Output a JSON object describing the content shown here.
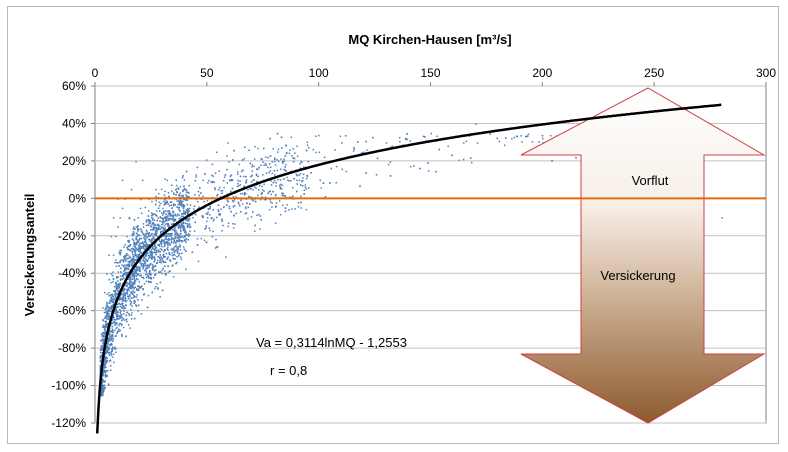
{
  "chart_data": {
    "type": "scatter",
    "title": "MQ Kirchen-Hausen [m³/s]",
    "xlabel": "",
    "ylabel": "Versickerungsanteil",
    "x_axis_position": "top",
    "xlim": [
      0,
      300
    ],
    "ylim": [
      -1.2,
      0.6
    ],
    "x_ticks": [
      0,
      50,
      100,
      150,
      200,
      250,
      300
    ],
    "y_ticks": [
      {
        "value": 0.6,
        "label": "60%"
      },
      {
        "value": 0.4,
        "label": "40%"
      },
      {
        "value": 0.2,
        "label": "20%"
      },
      {
        "value": 0.0,
        "label": "0%"
      },
      {
        "value": -0.2,
        "label": "-20%"
      },
      {
        "value": -0.4,
        "label": "-40%"
      },
      {
        "value": -0.6,
        "label": "-60%"
      },
      {
        "value": -0.8,
        "label": "-80%"
      },
      {
        "value": -1.0,
        "label": "-100%"
      },
      {
        "value": -1.2,
        "label": "-120%"
      }
    ],
    "grid": "horizontal",
    "series": [
      {
        "kind": "scatter",
        "color": "#4f81bd",
        "note_hidden": true,
        "x": [
          2,
          3,
          3,
          4,
          4,
          5,
          5,
          6,
          6,
          7,
          7,
          8,
          8,
          9,
          10,
          10,
          11,
          12,
          12,
          13,
          14,
          15,
          16,
          17,
          18,
          19,
          20,
          21,
          22,
          24,
          25,
          27,
          28,
          30,
          32,
          34,
          36,
          38,
          40,
          42,
          45,
          48,
          50,
          55,
          60,
          65,
          70,
          75,
          80,
          85,
          90,
          95,
          100,
          110,
          120,
          130,
          150,
          170,
          200,
          240,
          280
        ],
        "y": [
          -1.0,
          -0.9,
          -0.8,
          -0.7,
          -0.5,
          -0.6,
          -0.4,
          -0.5,
          -0.3,
          -0.4,
          -0.2,
          -0.3,
          -0.1,
          -0.2,
          -0.15,
          0.0,
          -0.1,
          -0.05,
          0.1,
          0.0,
          -0.2,
          -0.1,
          0.05,
          -0.15,
          0.2,
          -0.1,
          -0.05,
          0.1,
          -0.2,
          0.0,
          -0.1,
          0.05,
          -0.2,
          -0.05,
          0.1,
          -0.15,
          0.0,
          -0.1,
          0.05,
          -0.05,
          0.0,
          0.1,
          -0.1,
          0.05,
          0.1,
          0.0,
          0.15,
          0.1,
          0.2,
          0.15,
          0.1,
          0.2,
          0.25,
          0.3,
          0.25,
          0.3,
          0.35,
          0.4,
          0.3,
          0.35,
          -0.1
        ]
      },
      {
        "kind": "trendline",
        "color": "#000000",
        "a": 0.3114,
        "b": -1.2553,
        "x_range": [
          1,
          280
        ]
      },
      {
        "kind": "reference_line",
        "color": "#e36c0a",
        "y": 0
      }
    ],
    "annotations": [
      {
        "text": "Va = 0,3114lnMQ - 1,2553"
      },
      {
        "text": "r = 0,8"
      },
      {
        "text": "Vorflut"
      },
      {
        "text": "Versickerung"
      }
    ]
  }
}
